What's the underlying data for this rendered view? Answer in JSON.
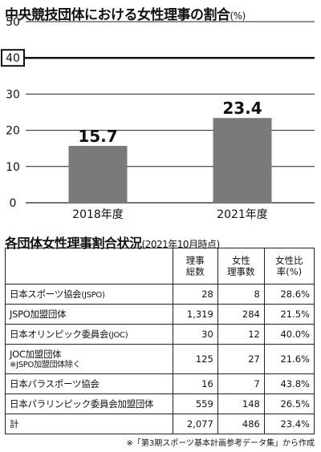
{
  "title": {
    "main": "中央競技団体における女性理事の割合",
    "unit": "(%)"
  },
  "chart_data": {
    "type": "bar",
    "categories": [
      "2018年度",
      "2021年度"
    ],
    "values": [
      15.7,
      23.4
    ],
    "ylim": [
      0,
      50
    ],
    "yticks": [
      "0",
      "10",
      "20",
      "30",
      "40",
      "50"
    ],
    "highlight_tick": "40",
    "grid": true,
    "bar_color": "#7a7a7a"
  },
  "table": {
    "title": "各団体女性理事割合状況",
    "as_of": "(2021年10月時点)",
    "headers": [
      {
        "line1": "",
        "line2": ""
      },
      {
        "line1": "理事",
        "line2": "総数"
      },
      {
        "line1": "女性",
        "line2": "理事数"
      },
      {
        "line1": "女性比",
        "line2": "率(%)"
      }
    ],
    "rows": [
      {
        "name": "日本スポーツ協会",
        "paren": "(JSPO)",
        "sub": "",
        "total": "28",
        "female": "8",
        "ratio": "28.6%"
      },
      {
        "name": "JSPO加盟団体",
        "paren": "",
        "sub": "",
        "total": "1,319",
        "female": "284",
        "ratio": "21.5%"
      },
      {
        "name": "日本オリンピック委員会",
        "paren": "(JOC)",
        "sub": "",
        "total": "30",
        "female": "12",
        "ratio": "40.0%"
      },
      {
        "name": "JOC加盟団体",
        "paren": "",
        "sub": "※JSPO加盟団体除く",
        "total": "125",
        "female": "27",
        "ratio": "21.6%"
      },
      {
        "name": "日本パラスポーツ協会",
        "paren": "",
        "sub": "",
        "total": "16",
        "female": "7",
        "ratio": "43.8%"
      },
      {
        "name": "日本パラリンピック委員会加盟団体",
        "paren": "",
        "sub": "",
        "total": "559",
        "female": "148",
        "ratio": "26.5%"
      },
      {
        "name": "計",
        "paren": "",
        "sub": "",
        "total": "2,077",
        "female": "486",
        "ratio": "23.4%"
      }
    ]
  },
  "source": "※「第3期スポーツ基本計画参考データ集」から作成"
}
